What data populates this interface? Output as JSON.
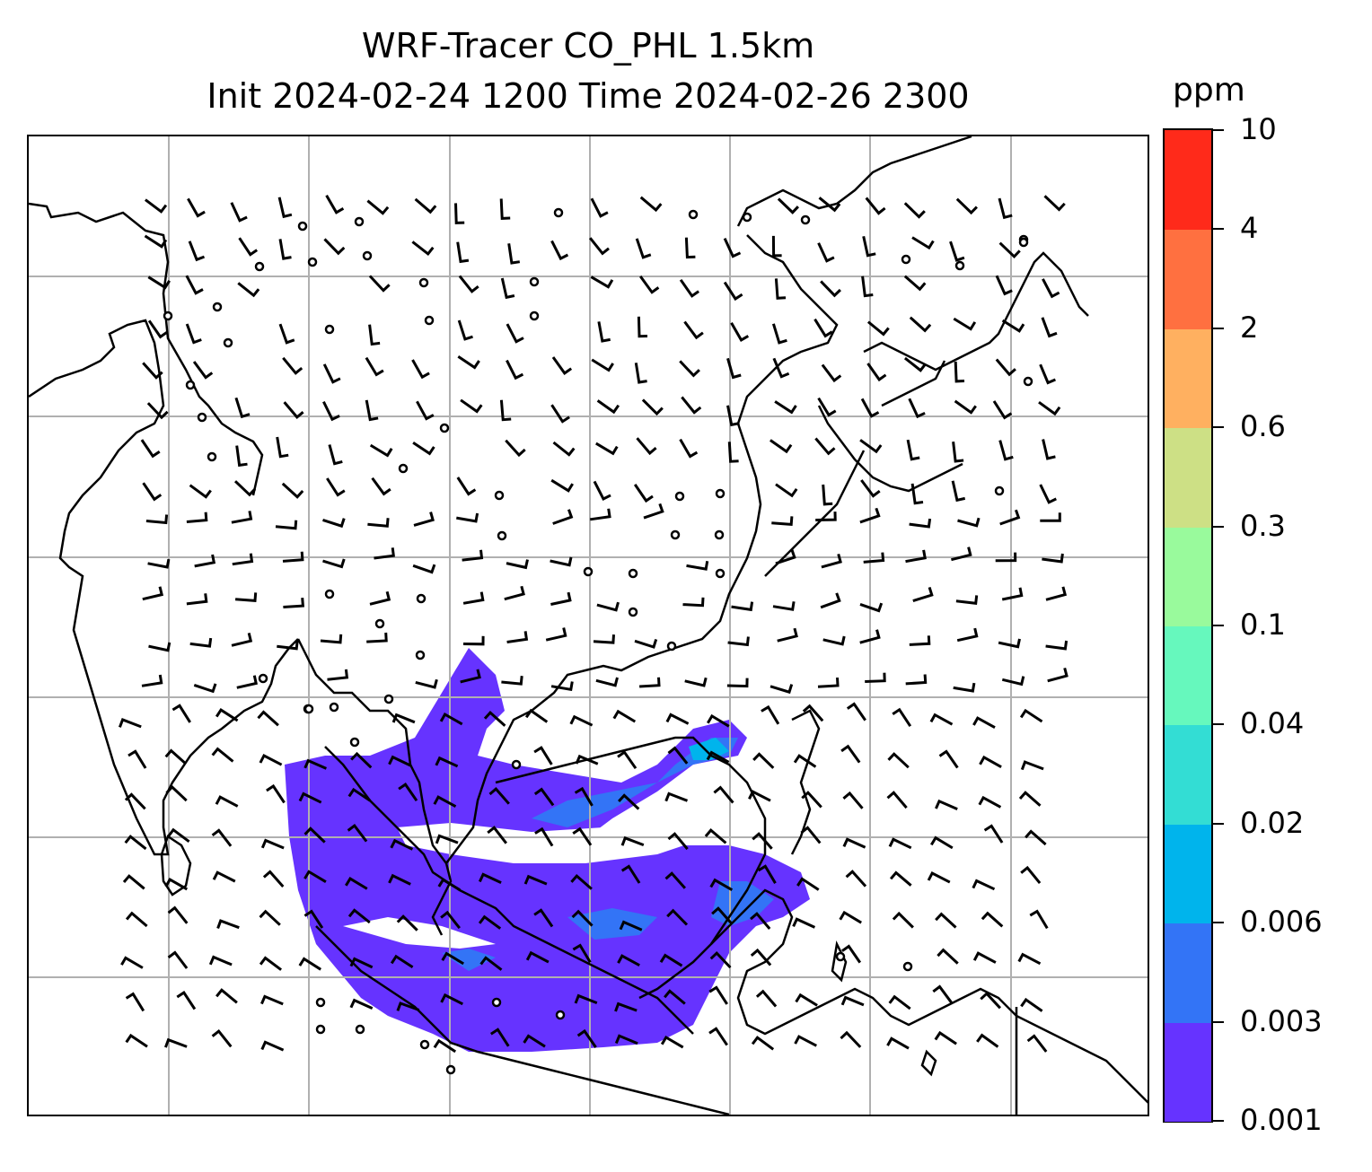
{
  "title": {
    "line1": "WRF-Tracer CO_PHL 1.5km",
    "line2": "Init 2024-02-24 1200 Time 2024-02-26 2300"
  },
  "map": {
    "coastline_color": "#000000",
    "gridline_color": "#b0b0b0",
    "wind_barbs": "black wind barbs across domain, calm circles in several locations",
    "tracer_fill_color": "#6633ff"
  },
  "colorbar": {
    "units": "ppm",
    "levels": [
      "0.001",
      "0.003",
      "0.006",
      "0.02",
      "0.04",
      "0.1",
      "0.3",
      "0.6",
      "2",
      "4",
      "10"
    ],
    "colors": [
      "#6633ff",
      "#3374f6",
      "#00b4ec",
      "#33ddd4",
      "#66f8bd",
      "#99fa9c",
      "#cde085",
      "#ffb060",
      "#ff7040",
      "#ff2a1a"
    ]
  }
}
